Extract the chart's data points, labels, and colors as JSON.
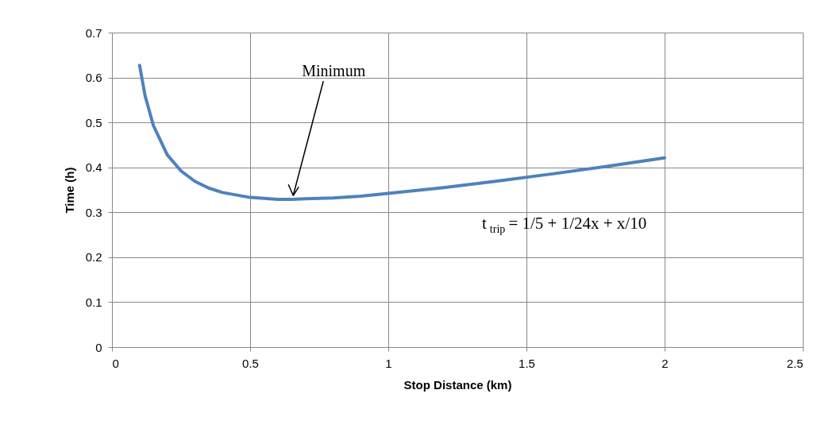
{
  "chart_data": {
    "type": "line",
    "xlabel": "Stop Distance (km)",
    "ylabel": "Time (h)",
    "x": [
      0.1,
      0.12,
      0.15,
      0.2,
      0.25,
      0.3,
      0.35,
      0.4,
      0.5,
      0.6,
      0.65,
      0.7,
      0.8,
      0.9,
      1.0,
      1.2,
      1.4,
      1.6,
      1.8,
      2.0
    ],
    "series": [
      {
        "color": "#4f81bd",
        "values": [
          0.627,
          0.559,
          0.493,
          0.428,
          0.392,
          0.369,
          0.354,
          0.344,
          0.333,
          0.329,
          0.329,
          0.33,
          0.332,
          0.336,
          0.342,
          0.355,
          0.37,
          0.386,
          0.403,
          0.421
        ]
      }
    ],
    "xlim": [
      0,
      2.5
    ],
    "xticks": [
      0,
      0.5,
      1,
      1.5,
      2,
      2.5
    ],
    "ylim": [
      0,
      0.7
    ],
    "yticks": [
      0,
      0.1,
      0.2,
      0.3,
      0.4,
      0.5,
      0.6,
      0.7
    ],
    "grid": true,
    "marker": "none",
    "line_style": "solid",
    "annotations": [
      {
        "text": "Minimum",
        "x": 0.65,
        "y": 0.33
      },
      "t$_{trip}$ = 1/5 + 1/24x + x/10"
    ]
  }
}
